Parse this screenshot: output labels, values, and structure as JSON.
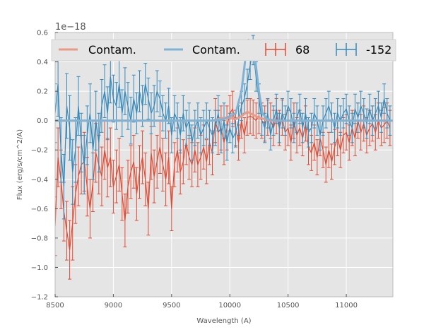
{
  "chart_data": {
    "type": "line",
    "title": "",
    "xlabel": "Wavelength (A)",
    "ylabel": "Flux (erg/s/cm^2/A)",
    "y_offset_label": "1e−18",
    "xlim": [
      8500,
      11400
    ],
    "ylim": [
      -1.2,
      0.6
    ],
    "xticks": [
      8500,
      9000,
      9500,
      10000,
      10500,
      11000
    ],
    "xtick_labels": [
      "8500",
      "9000",
      "9500",
      "10000",
      "10500",
      "11000"
    ],
    "yticks": [
      -1.2,
      -1.0,
      -0.8,
      -0.6,
      -0.4,
      -0.2,
      0.0,
      0.2,
      0.4,
      0.6
    ],
    "ytick_labels": [
      "−1.2",
      "−1.0",
      "−0.8",
      "−0.6",
      "−0.4",
      "−0.2",
      "0.0",
      "0.2",
      "0.4",
      "0.6"
    ],
    "grid": true,
    "legend": {
      "placement": "top",
      "entries": [
        {
          "label": "Contam.",
          "kind": "line",
          "color": "#e89a86"
        },
        {
          "label": "Contam.",
          "kind": "line",
          "color": "#7fb2d4"
        },
        {
          "label": "68",
          "kind": "errorbar",
          "color": "#e24a33"
        },
        {
          "label": "-152",
          "kind": "errorbar",
          "color": "#348abd"
        }
      ]
    },
    "colors": {
      "red": "#e24a33",
      "blue": "#348abd",
      "red_contam": "#e89a86",
      "blue_contam": "#7fb2d4",
      "background": "#e5e5e5",
      "grid": "#ffffff"
    },
    "series": [
      {
        "name": "68",
        "x": [
          8500,
          8525,
          8550,
          8575,
          8600,
          8625,
          8650,
          8675,
          8700,
          8725,
          8750,
          8775,
          8800,
          8825,
          8850,
          8875,
          8900,
          8925,
          8950,
          8975,
          9000,
          9025,
          9050,
          9075,
          9100,
          9125,
          9150,
          9175,
          9200,
          9225,
          9250,
          9275,
          9300,
          9325,
          9350,
          9375,
          9400,
          9425,
          9450,
          9475,
          9500,
          9525,
          9550,
          9575,
          9600,
          9625,
          9650,
          9675,
          9700,
          9725,
          9750,
          9775,
          9800,
          9825,
          9850,
          9875,
          9900,
          9925,
          9950,
          9975,
          10000,
          10025,
          10050,
          10075,
          10100,
          10125,
          10150,
          10175,
          10200,
          10225,
          10250,
          10275,
          10300,
          10325,
          10350,
          10375,
          10400,
          10425,
          10450,
          10475,
          10500,
          10525,
          10550,
          10575,
          10600,
          10625,
          10650,
          10675,
          10700,
          10725,
          10750,
          10775,
          10800,
          10825,
          10850,
          10875,
          10900,
          10925,
          10950,
          10975,
          11000,
          11025,
          11050,
          11075,
          11100,
          11125,
          11150,
          11175,
          11200,
          11225,
          11250,
          11275,
          11300,
          11325,
          11350,
          11375
        ],
        "y": [
          -0.72,
          -0.25,
          -0.4,
          -0.62,
          -0.75,
          -0.88,
          -0.7,
          -0.5,
          -0.38,
          -0.3,
          -0.28,
          -0.45,
          -0.6,
          -0.42,
          -0.22,
          -0.3,
          -0.38,
          -0.2,
          -0.32,
          -0.25,
          -0.45,
          -0.38,
          -0.3,
          -0.5,
          -0.68,
          -0.45,
          -0.35,
          -0.28,
          -0.5,
          -0.35,
          -0.25,
          -0.4,
          -0.6,
          -0.22,
          -0.38,
          -0.28,
          -0.18,
          -0.3,
          -0.4,
          -0.25,
          -0.6,
          -0.3,
          -0.2,
          -0.35,
          -0.28,
          -0.15,
          -0.25,
          -0.3,
          -0.2,
          -0.3,
          -0.25,
          -0.18,
          -0.28,
          -0.15,
          -0.22,
          0.0,
          -0.08,
          -0.05,
          -0.15,
          -0.05,
          0.05,
          0.08,
          -0.05,
          -0.15,
          0.0,
          -0.1,
          0.02,
          0.03,
          0.02,
          0.0,
          0.03,
          0.0,
          -0.02,
          0.02,
          0.0,
          -0.05,
          0.03,
          -0.05,
          0.02,
          -0.08,
          -0.05,
          -0.15,
          0.0,
          -0.1,
          -0.05,
          -0.12,
          -0.02,
          -0.18,
          -0.22,
          -0.15,
          -0.25,
          -0.12,
          -0.2,
          -0.3,
          -0.2,
          -0.28,
          -0.18,
          -0.12,
          -0.2,
          -0.1,
          -0.08,
          -0.15,
          -0.05,
          -0.12,
          0.0,
          -0.08,
          -0.02,
          -0.1,
          -0.05,
          -0.02,
          -0.08,
          0.0,
          -0.05,
          -0.03,
          0.0,
          -0.05
        ],
        "err": [
          0.2,
          0.2,
          0.2,
          0.2,
          0.2,
          0.2,
          0.25,
          0.2,
          0.2,
          0.2,
          0.2,
          0.2,
          0.2,
          0.2,
          0.2,
          0.2,
          0.2,
          0.2,
          0.2,
          0.2,
          0.18,
          0.18,
          0.18,
          0.18,
          0.18,
          0.18,
          0.18,
          0.18,
          0.18,
          0.18,
          0.18,
          0.18,
          0.18,
          0.18,
          0.18,
          0.18,
          0.18,
          0.18,
          0.18,
          0.18,
          0.15,
          0.15,
          0.15,
          0.15,
          0.15,
          0.15,
          0.15,
          0.15,
          0.15,
          0.15,
          0.15,
          0.15,
          0.15,
          0.15,
          0.15,
          0.15,
          0.15,
          0.15,
          0.15,
          0.15,
          0.12,
          0.12,
          0.12,
          0.12,
          0.12,
          0.12,
          0.12,
          0.12,
          0.12,
          0.12,
          0.12,
          0.12,
          0.12,
          0.12,
          0.12,
          0.12,
          0.12,
          0.12,
          0.12,
          0.12,
          0.12,
          0.12,
          0.12,
          0.12,
          0.12,
          0.12,
          0.12,
          0.12,
          0.12,
          0.12,
          0.12,
          0.12,
          0.12,
          0.12,
          0.12,
          0.12,
          0.12,
          0.12,
          0.12,
          0.12,
          0.12,
          0.12,
          0.12,
          0.12,
          0.12,
          0.12,
          0.12,
          0.12,
          0.12,
          0.12,
          0.12,
          0.12,
          0.12,
          0.12,
          0.12,
          0.12
        ]
      },
      {
        "name": "-152",
        "x": [
          8500,
          8525,
          8550,
          8575,
          8600,
          8625,
          8650,
          8675,
          8700,
          8725,
          8750,
          8775,
          8800,
          8825,
          8850,
          8875,
          8900,
          8925,
          8950,
          8975,
          9000,
          9025,
          9050,
          9075,
          9100,
          9125,
          9150,
          9175,
          9200,
          9225,
          9250,
          9275,
          9300,
          9325,
          9350,
          9375,
          9400,
          9425,
          9450,
          9475,
          9500,
          9525,
          9550,
          9575,
          9600,
          9625,
          9650,
          9675,
          9700,
          9725,
          9750,
          9775,
          9800,
          9825,
          9850,
          9875,
          9900,
          9925,
          9950,
          9975,
          10000,
          10025,
          10050,
          10075,
          10100,
          10125,
          10150,
          10175,
          10200,
          10225,
          10250,
          10275,
          10300,
          10325,
          10350,
          10375,
          10400,
          10425,
          10450,
          10475,
          10500,
          10525,
          10550,
          10575,
          10600,
          10625,
          10650,
          10675,
          10700,
          10725,
          10750,
          10775,
          10800,
          10825,
          10850,
          10875,
          10900,
          10925,
          10950,
          10975,
          11000,
          11025,
          11050,
          11075,
          11100,
          11125,
          11150,
          11175,
          11200,
          11225,
          11250,
          11275,
          11300,
          11325,
          11350,
          11375
        ],
        "y": [
          0.05,
          0.25,
          -0.2,
          -0.45,
          0.1,
          -0.05,
          -0.35,
          -0.2,
          0.1,
          -0.15,
          -0.3,
          -0.1,
          0.05,
          -0.2,
          0.0,
          -0.15,
          0.1,
          0.2,
          0.05,
          0.3,
          0.15,
          0.1,
          0.25,
          0.05,
          0.2,
          0.1,
          0.0,
          0.15,
          0.05,
          0.2,
          0.1,
          0.25,
          0.15,
          0.05,
          0.1,
          0.2,
          0.15,
          0.05,
          0.0,
          0.1,
          -0.1,
          0.05,
          0.0,
          -0.1,
          0.05,
          -0.05,
          0.0,
          -0.15,
          -0.05,
          0.0,
          -0.1,
          -0.05,
          0.0,
          -0.05,
          -0.1,
          -0.05,
          0.05,
          -0.1,
          0.0,
          -0.15,
          -0.05,
          -0.12,
          -0.08,
          0.0,
          0.1,
          0.15,
          0.25,
          0.38,
          0.48,
          0.3,
          0.15,
          0.0,
          -0.05,
          0.05,
          -0.1,
          0.0,
          0.08,
          -0.05,
          0.05,
          0.0,
          0.1,
          0.05,
          -0.05,
          0.02,
          0.08,
          -0.05,
          0.05,
          -0.08,
          -0.05,
          0.05,
          0.0,
          -0.1,
          0.0,
          0.05,
          0.1,
          0.02,
          -0.05,
          0.05,
          0.0,
          0.05,
          0.08,
          0.0,
          -0.05,
          0.08,
          0.02,
          0.1,
          0.05,
          -0.02,
          0.08,
          0.0,
          0.05,
          0.1,
          0.02,
          0.15,
          0.05,
          0.0
        ],
        "err": [
          0.2,
          0.22,
          0.22,
          0.22,
          0.22,
          0.22,
          0.22,
          0.22,
          0.2,
          0.2,
          0.2,
          0.2,
          0.2,
          0.2,
          0.2,
          0.2,
          0.18,
          0.18,
          0.18,
          0.18,
          0.16,
          0.16,
          0.16,
          0.16,
          0.16,
          0.16,
          0.16,
          0.16,
          0.14,
          0.14,
          0.14,
          0.14,
          0.14,
          0.14,
          0.14,
          0.14,
          0.12,
          0.12,
          0.12,
          0.12,
          0.12,
          0.12,
          0.12,
          0.12,
          0.12,
          0.12,
          0.12,
          0.12,
          0.12,
          0.12,
          0.12,
          0.12,
          0.12,
          0.12,
          0.12,
          0.12,
          0.12,
          0.12,
          0.12,
          0.12,
          0.1,
          0.1,
          0.1,
          0.1,
          0.1,
          0.1,
          0.1,
          0.1,
          0.1,
          0.1,
          0.1,
          0.1,
          0.1,
          0.1,
          0.1,
          0.1,
          0.1,
          0.1,
          0.1,
          0.1,
          0.1,
          0.1,
          0.1,
          0.1,
          0.1,
          0.1,
          0.1,
          0.1,
          0.1,
          0.1,
          0.1,
          0.1,
          0.1,
          0.1,
          0.1,
          0.1,
          0.1,
          0.1,
          0.1,
          0.1,
          0.1,
          0.1,
          0.1,
          0.1,
          0.1,
          0.1,
          0.1,
          0.1,
          0.1,
          0.1,
          0.1,
          0.1,
          0.1,
          0.1,
          0.1,
          0.1
        ]
      },
      {
        "name": "Contam. (68)",
        "x": [
          8500,
          8700,
          8900,
          9100,
          9300,
          9500,
          9700,
          9850,
          9900,
          9950,
          10000,
          10050,
          10100,
          10150,
          10200,
          10250,
          10300,
          10350,
          10400,
          10600,
          10800,
          11000,
          11200,
          11400
        ],
        "y": [
          0.0,
          0.0,
          0.0,
          0.0,
          0.0,
          0.0,
          0.0,
          0.0,
          0.01,
          0.02,
          0.02,
          0.01,
          0.03,
          0.06,
          0.04,
          0.02,
          0.01,
          0.0,
          0.0,
          0.0,
          0.0,
          0.0,
          0.0,
          0.0
        ]
      },
      {
        "name": "Contam. (-152)",
        "x": [
          8500,
          8700,
          8900,
          9100,
          9300,
          9500,
          9700,
          9850,
          9950,
          10050,
          10100,
          10130,
          10160,
          10190,
          10220,
          10250,
          10280,
          10320,
          10400,
          10600,
          10800,
          11000,
          11200,
          11400
        ],
        "y": [
          0.0,
          0.0,
          0.0,
          0.0,
          0.0,
          0.0,
          0.0,
          0.0,
          0.01,
          0.05,
          0.2,
          0.4,
          0.55,
          0.5,
          0.4,
          0.2,
          0.05,
          0.01,
          0.0,
          0.0,
          0.0,
          0.0,
          0.0,
          0.0
        ]
      }
    ]
  }
}
